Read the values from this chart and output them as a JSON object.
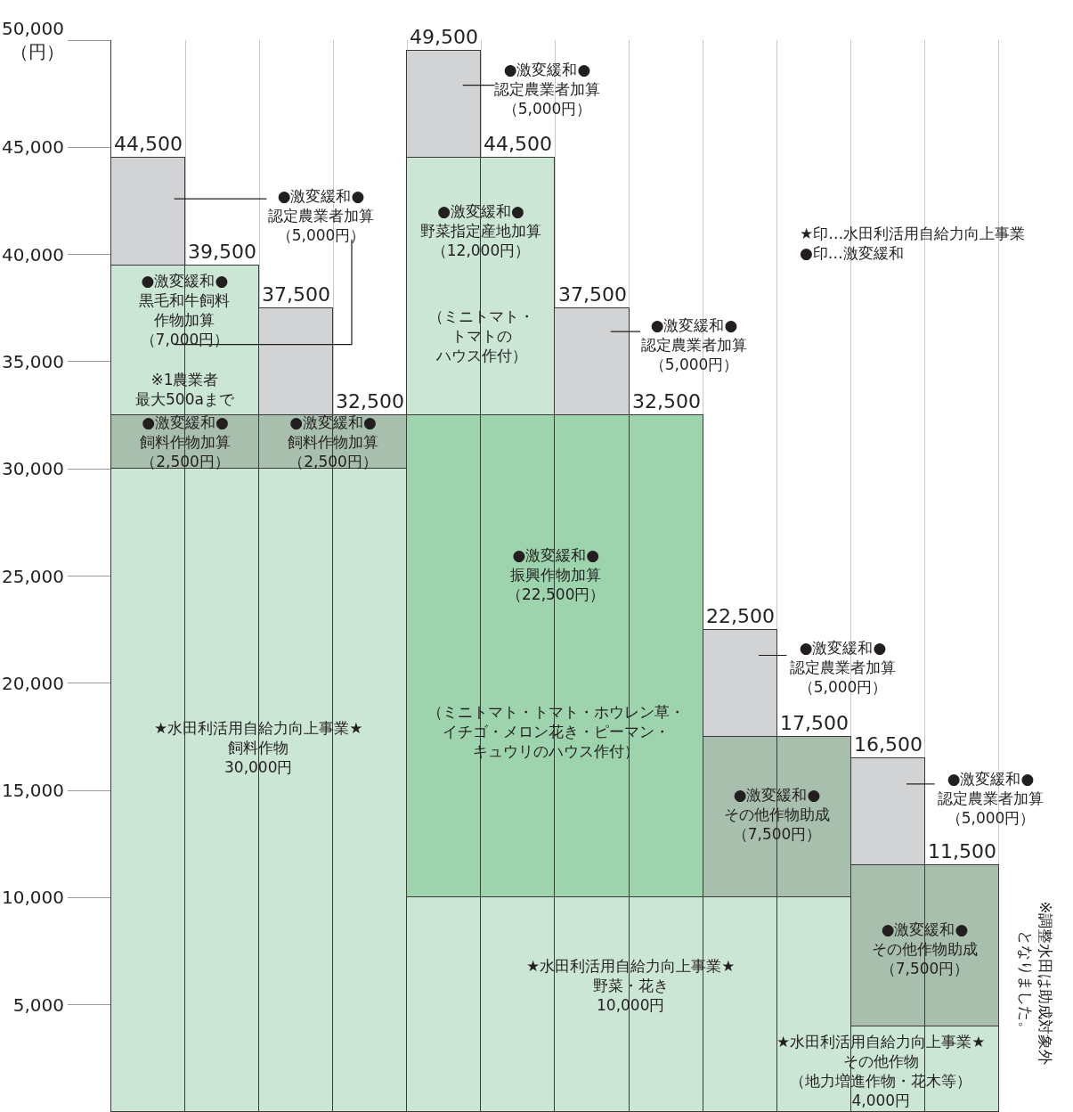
{
  "chart_data": {
    "type": "bar",
    "stacked": true,
    "categories": [
      null,
      null,
      null,
      null,
      null,
      null,
      null,
      null,
      null,
      null,
      null,
      null
    ],
    "series": [
      {
        "values": [
          30000,
          30000,
          30000,
          30000,
          10000,
          10000,
          10000,
          10000,
          10000,
          10000,
          4000,
          4000
        ],
        "color": "#cce6d5"
      },
      {
        "values": [
          2500,
          2500,
          2500,
          2500,
          22500,
          22500,
          22500,
          22500,
          7500,
          7500,
          7500,
          7500
        ],
        "colors": [
          "#a8bfae",
          "#a8bfae",
          "#a8bfae",
          "#a8bfae",
          "#9dd4ad",
          "#9dd4ad",
          "#9dd4ad",
          "#9dd4ad",
          "#a8bfae",
          "#a8bfae",
          "#a8bfae",
          "#a8bfae"
        ]
      },
      {
        "values": [
          7000,
          7000,
          5000,
          null,
          12000,
          12000,
          5000,
          null,
          5000,
          null,
          5000,
          null
        ],
        "colors": [
          "#cce6d5",
          "#cce6d5",
          "#d1d3d4",
          null,
          "#cce6d5",
          "#cce6d5",
          "#d1d3d4",
          null,
          "#d1d3d4",
          null,
          "#d1d3d4",
          null
        ]
      },
      {
        "values": [
          5000,
          null,
          null,
          null,
          5000,
          null,
          null,
          null,
          null,
          null,
          null,
          null
        ],
        "colors": [
          "#d1d3d4",
          null,
          null,
          null,
          "#d1d3d4",
          null,
          null,
          null,
          null,
          null,
          null,
          null
        ]
      }
    ],
    "totals": [
      "44,500",
      "39,500",
      "37,500",
      "32,500",
      "49,500",
      "44,500",
      "37,500",
      "32,500",
      "22,500",
      "17,500",
      "16,500",
      "11,500"
    ],
    "ylim": [
      0,
      50000
    ],
    "yticks": [
      {
        "value": 5000,
        "label": "5,000"
      },
      {
        "value": 10000,
        "label": "10,000"
      },
      {
        "value": 15000,
        "label": "15,000"
      },
      {
        "value": 20000,
        "label": "20,000"
      },
      {
        "value": 25000,
        "label": "25,000"
      },
      {
        "value": 30000,
        "label": "30,000"
      },
      {
        "value": 35000,
        "label": "35,000"
      },
      {
        "value": 40000,
        "label": "40,000"
      },
      {
        "value": 45000,
        "label": "45,000"
      },
      {
        "value": 50000,
        "label": "50,000\n（円）"
      }
    ],
    "grid": "x",
    "annotations": [
      "●激変緩和●認定農業者加算（5,000円）",
      "●激変緩和●認定農業者加算（5,000円）",
      "●激変緩和●野菜指定産地加算（12,000円）",
      "（ミニトマト・トマトのハウス作付）",
      "●激変緩和●黒毛和牛飼料作物加算（7,000円）※1農業者最大500aまで",
      "●激変緩和●飼料作物加算（2,500円）",
      "●激変緩和●飼料作物加算（2,500円）",
      "●激変緩和●認定農業者加算（5,000円）",
      "●激変緩和●振興作物加算（22,500円）",
      "（ミニトマト・トマト・ホウレン草・イチゴ・メロン花き・ピーマン・キュウリのハウス作付）",
      "★水田利活用自給力向上事業★飼料作物30,000円",
      "●激変緩和●認定農業者加算（5,000円）",
      "●激変緩和●その他作物助成（7,500円）",
      "●激変緩和●認定農業者加算（5,000円）",
      "●激変緩和●その他作物助成（7,500円）",
      "★水田利活用自給力向上事業★野菜・花き10,000円",
      "★水田利活用自給力向上事業★その他作物（地力増進作物・花木等）4,000円",
      "★印…水田利活用自給力向上事業",
      "●印…激変緩和",
      "※調整水田は助成対象外となりました。"
    ]
  }
}
